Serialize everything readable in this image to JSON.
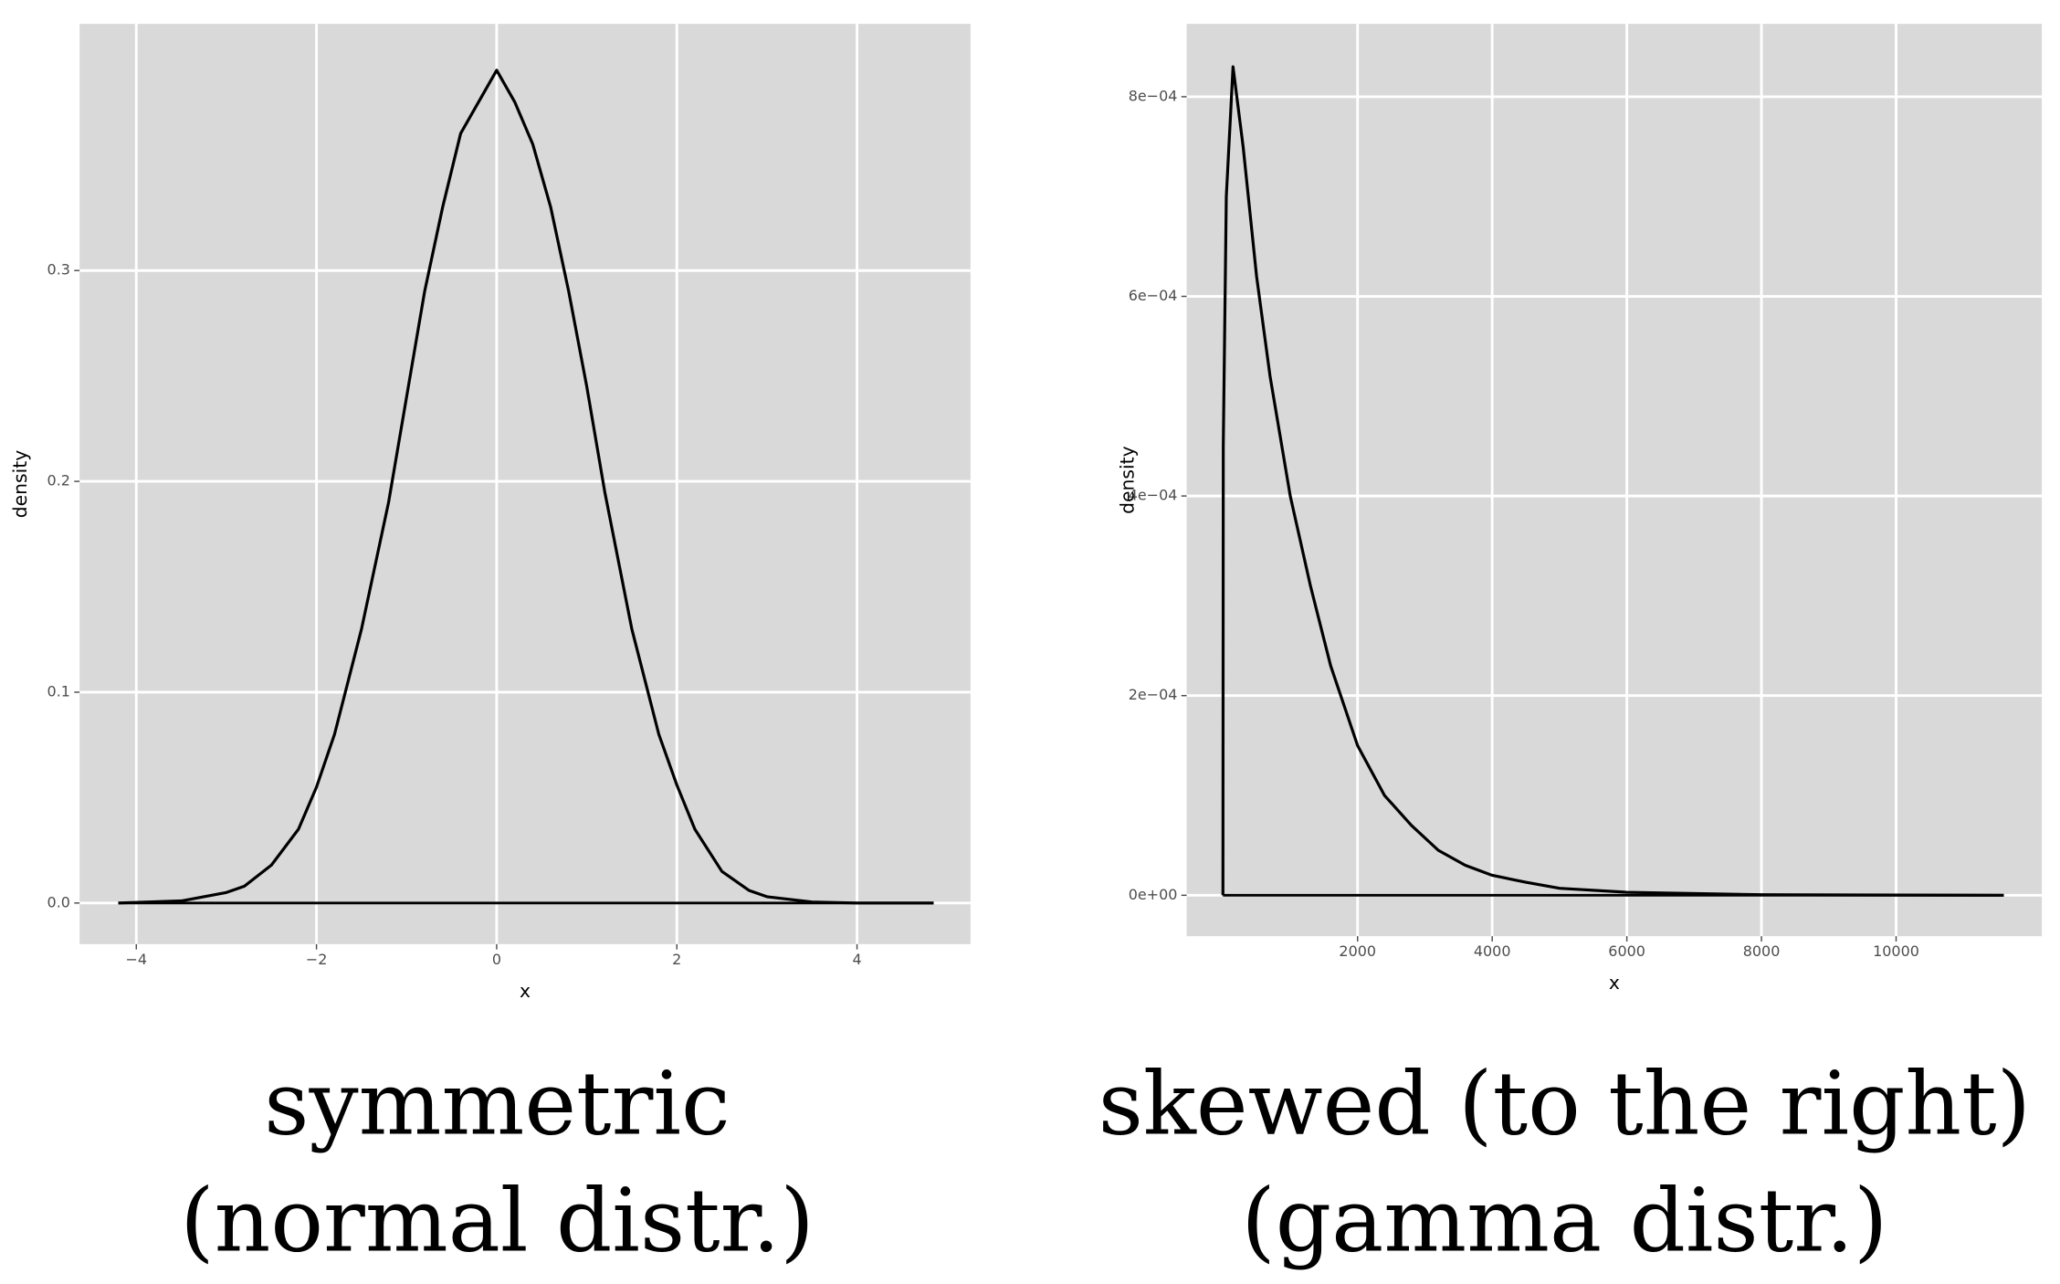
{
  "chart_data": [
    {
      "type": "line",
      "xlabel": "x",
      "ylabel": "density",
      "caption": [
        "symmetric",
        "(normal distr.)"
      ],
      "color": "#000000",
      "grid": true,
      "xlim": [
        -4.63,
        5.26
      ],
      "ylim": [
        -0.0195,
        0.417
      ],
      "xticks": [
        {
          "value": -4,
          "label": "−4"
        },
        {
          "value": -2,
          "label": "−2"
        },
        0,
        2,
        4
      ],
      "yticks": [
        {
          "value": 0,
          "label": "0.0"
        },
        0.1,
        0.2,
        0.3
      ],
      "x": [
        -4.2,
        -3.5,
        -3,
        -2.8,
        -2.5,
        -2.2,
        -2,
        -1.8,
        -1.5,
        -1.2,
        -1,
        -0.8,
        -0.6,
        -0.4,
        -0.2,
        0,
        0.2,
        0.4,
        0.6,
        0.8,
        1,
        1.2,
        1.5,
        1.8,
        2,
        2.2,
        2.5,
        2.8,
        3,
        3.5,
        4,
        4.85
      ],
      "values": [
        0,
        0.001,
        0.005,
        0.008,
        0.018,
        0.035,
        0.055,
        0.08,
        0.13,
        0.19,
        0.24,
        0.29,
        0.33,
        0.365,
        0.38,
        0.395,
        0.38,
        0.36,
        0.33,
        0.29,
        0.245,
        0.195,
        0.13,
        0.08,
        0.056,
        0.035,
        0.015,
        0.006,
        0.003,
        0.0005,
        0,
        0
      ]
    },
    {
      "type": "line",
      "xlabel": "x",
      "ylabel": "density",
      "caption": [
        "skewed (to the right)",
        "(gamma distr.)"
      ],
      "color": "#000000",
      "grid": true,
      "xlim": [
        -539,
        12165
      ],
      "ylim": [
        -4.1e-05,
        0.000873
      ],
      "xticks": [
        2000,
        4000,
        6000,
        8000,
        10000
      ],
      "yticks": [
        {
          "value": 0,
          "label": "0e+00"
        },
        {
          "value": 0.0002,
          "label": "2e−04"
        },
        {
          "value": 0.0004,
          "label": "4e−04"
        },
        {
          "value": 0.0006,
          "label": "6e−04"
        },
        {
          "value": 0.0008,
          "label": "8e−04"
        }
      ],
      "x": [
        0,
        5,
        50,
        150,
        300,
        500,
        700,
        1000,
        1300,
        1600,
        2000,
        2400,
        2800,
        3200,
        3600,
        4000,
        4500,
        5000,
        6000,
        8000,
        11600
      ],
      "values": [
        0,
        0.00045,
        0.0007,
        0.00083,
        0.00075,
        0.00062,
        0.00052,
        0.0004,
        0.00031,
        0.00023,
        0.00015,
        0.0001,
        7e-05,
        4.5e-05,
        3e-05,
        2e-05,
        1.3e-05,
        7e-06,
        3e-06,
        5e-07,
        0
      ]
    }
  ]
}
